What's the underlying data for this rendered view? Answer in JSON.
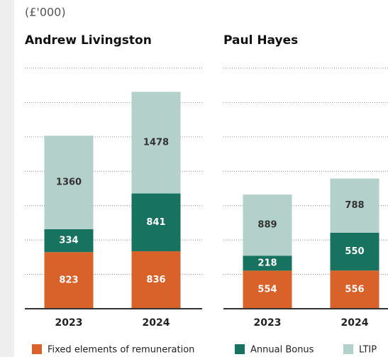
{
  "subtitle": "(£'000)",
  "series": [
    {
      "name": "Fixed elements of remuneration",
      "color": "#d9622b"
    },
    {
      "name": "Annual Bonus",
      "color": "#17725f"
    },
    {
      "name": "LTIP",
      "color": "#b3d1ca"
    }
  ],
  "chart_data": [
    {
      "type": "bar",
      "stacked": true,
      "title": "Andrew Livingston",
      "categories": [
        "2023",
        "2024"
      ],
      "series": [
        {
          "values": [
            823,
            836
          ]
        },
        {
          "values": [
            334,
            841
          ]
        },
        {
          "values": [
            1360,
            1478
          ]
        }
      ],
      "ylim": [
        0,
        3500
      ],
      "yticks": [
        0,
        500,
        1000,
        1500,
        2000,
        2500,
        3000,
        3500
      ],
      "grid": true
    },
    {
      "type": "bar",
      "stacked": true,
      "title": "Paul Hayes",
      "categories": [
        "2023",
        "2024"
      ],
      "series": [
        {
          "values": [
            554,
            556
          ]
        },
        {
          "values": [
            218,
            550
          ]
        },
        {
          "values": [
            889,
            788
          ]
        }
      ],
      "ylim": [
        0,
        3500
      ],
      "yticks": [
        0,
        500,
        1000,
        1500,
        2000,
        2500,
        3000,
        3500
      ],
      "grid": true
    }
  ]
}
